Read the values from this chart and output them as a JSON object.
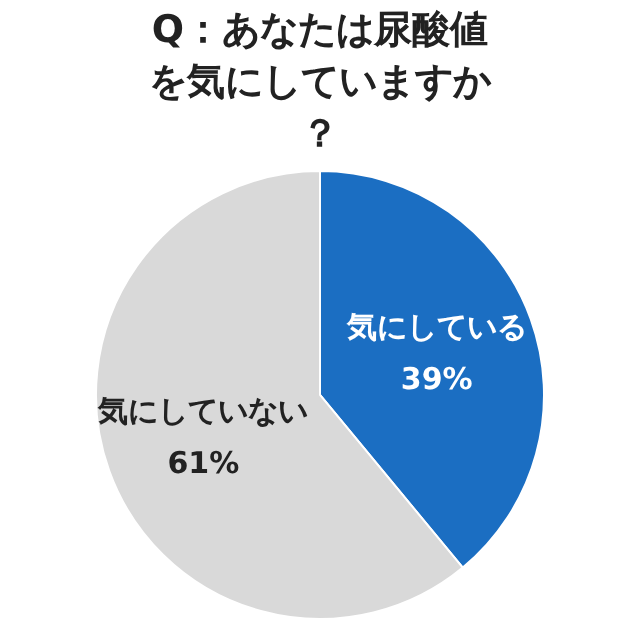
{
  "chart_data": {
    "type": "pie",
    "title": "Q：あなたは尿酸値を気にしていますか？",
    "categories": [
      "気にしている",
      "気にしていない"
    ],
    "values": [
      39,
      61
    ],
    "colors": [
      "#1b6ec2",
      "#d9d9d9"
    ],
    "value_labels": [
      "39%",
      "61%"
    ],
    "legend": false
  }
}
